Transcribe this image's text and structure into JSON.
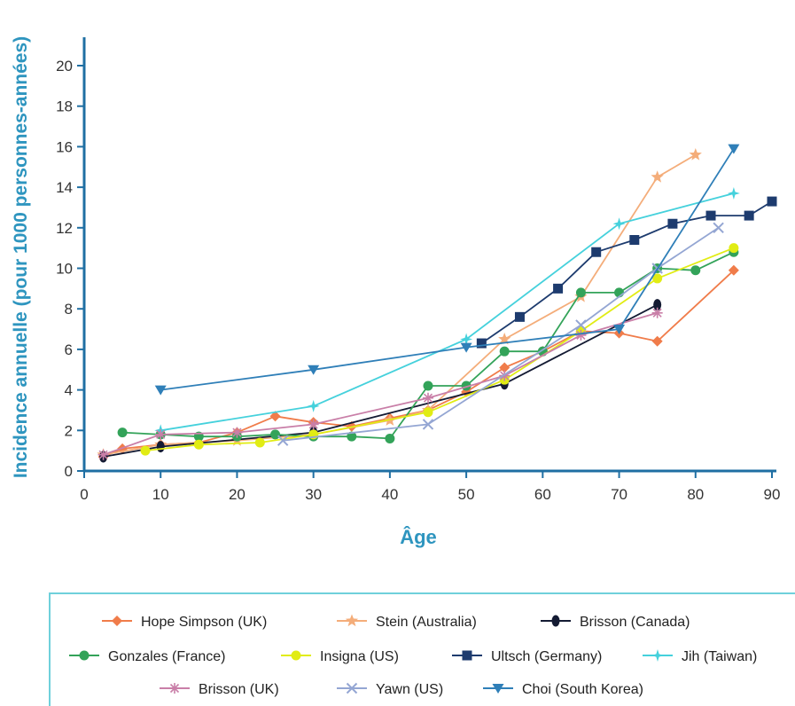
{
  "chart_data": {
    "type": "line",
    "xlabel": "Âge",
    "ylabel": "Incidence annuelle (pour 1000 personnes-années)",
    "xlim": [
      0,
      90
    ],
    "ylim": [
      0,
      21
    ],
    "xticks": [
      0,
      10,
      20,
      30,
      40,
      50,
      60,
      70,
      80,
      90
    ],
    "yticks": [
      0,
      2,
      4,
      6,
      8,
      10,
      12,
      14,
      16,
      18,
      20
    ],
    "grid": false,
    "legend_position": "bottom",
    "series": [
      {
        "name": "Hope Simpson (UK)",
        "color": "#f07c4a",
        "marker": "diamond",
        "x": [
          2.5,
          5,
          10,
          15,
          20,
          25,
          30,
          35,
          40,
          45,
          50,
          55,
          60,
          65,
          70,
          75,
          85
        ],
        "y": [
          0.7,
          1.1,
          1.3,
          1.4,
          1.9,
          2.7,
          2.4,
          2.2,
          2.6,
          3.0,
          3.9,
          5.1,
          5.9,
          6.9,
          6.8,
          6.4,
          9.9
        ]
      },
      {
        "name": "Stein (Australia)",
        "color": "#f4ad7a",
        "marker": "star",
        "x": [
          2.5,
          10,
          20,
          30,
          40,
          45,
          55,
          65,
          75,
          80
        ],
        "y": [
          0.8,
          1.3,
          1.5,
          1.8,
          2.5,
          3.0,
          6.5,
          8.6,
          14.5,
          15.6
        ]
      },
      {
        "name": "Brisson (Canada)",
        "color": "#141b33",
        "marker": "oval",
        "x": [
          2.5,
          10,
          30,
          55,
          75
        ],
        "y": [
          0.7,
          1.2,
          1.9,
          4.3,
          8.2
        ]
      },
      {
        "name": "Gonzales (France)",
        "color": "#33a359",
        "marker": "circle",
        "x": [
          5,
          10,
          15,
          20,
          25,
          30,
          35,
          40,
          45,
          50,
          55,
          60,
          65,
          70,
          75,
          80,
          85
        ],
        "y": [
          1.9,
          1.8,
          1.7,
          1.7,
          1.8,
          1.7,
          1.7,
          1.6,
          4.2,
          4.2,
          5.9,
          5.9,
          8.8,
          8.8,
          10.0,
          9.9,
          10.8
        ]
      },
      {
        "name": "Insigna (US)",
        "color": "#e1ec14",
        "marker": "circle",
        "x": [
          8,
          15,
          23,
          30,
          45,
          55,
          65,
          75,
          85
        ],
        "y": [
          1.0,
          1.3,
          1.4,
          1.8,
          2.9,
          4.5,
          6.9,
          9.5,
          11.0
        ]
      },
      {
        "name": "Ultsch (Germany)",
        "color": "#1d3b6e",
        "marker": "square",
        "x": [
          52,
          57,
          62,
          67,
          72,
          77,
          82,
          87,
          90
        ],
        "y": [
          6.3,
          7.6,
          9.0,
          10.8,
          11.4,
          12.2,
          12.6,
          12.6,
          13.3
        ]
      },
      {
        "name": "Jih (Taiwan)",
        "color": "#45d1dc",
        "marker": "cross",
        "x": [
          10,
          30,
          50,
          70,
          85
        ],
        "y": [
          2.0,
          3.2,
          6.5,
          12.2,
          13.7
        ]
      },
      {
        "name": "Brisson (UK)",
        "color": "#c97fa8",
        "marker": "asterisk",
        "x": [
          2.5,
          10,
          20,
          30,
          45,
          55,
          65,
          75
        ],
        "y": [
          0.8,
          1.8,
          1.9,
          2.3,
          3.6,
          4.7,
          6.7,
          7.8
        ]
      },
      {
        "name": "Yawn (US)",
        "color": "#94a6d3",
        "marker": "x",
        "x": [
          26,
          45,
          65,
          75,
          83
        ],
        "y": [
          1.5,
          2.3,
          7.2,
          10.0,
          12.0
        ]
      },
      {
        "name": "Choi (South Korea)",
        "color": "#2f7fb8",
        "marker": "triangle-down",
        "x": [
          10,
          30,
          50,
          70,
          85
        ],
        "y": [
          4.0,
          5.0,
          6.1,
          7.0,
          15.9
        ]
      }
    ]
  }
}
